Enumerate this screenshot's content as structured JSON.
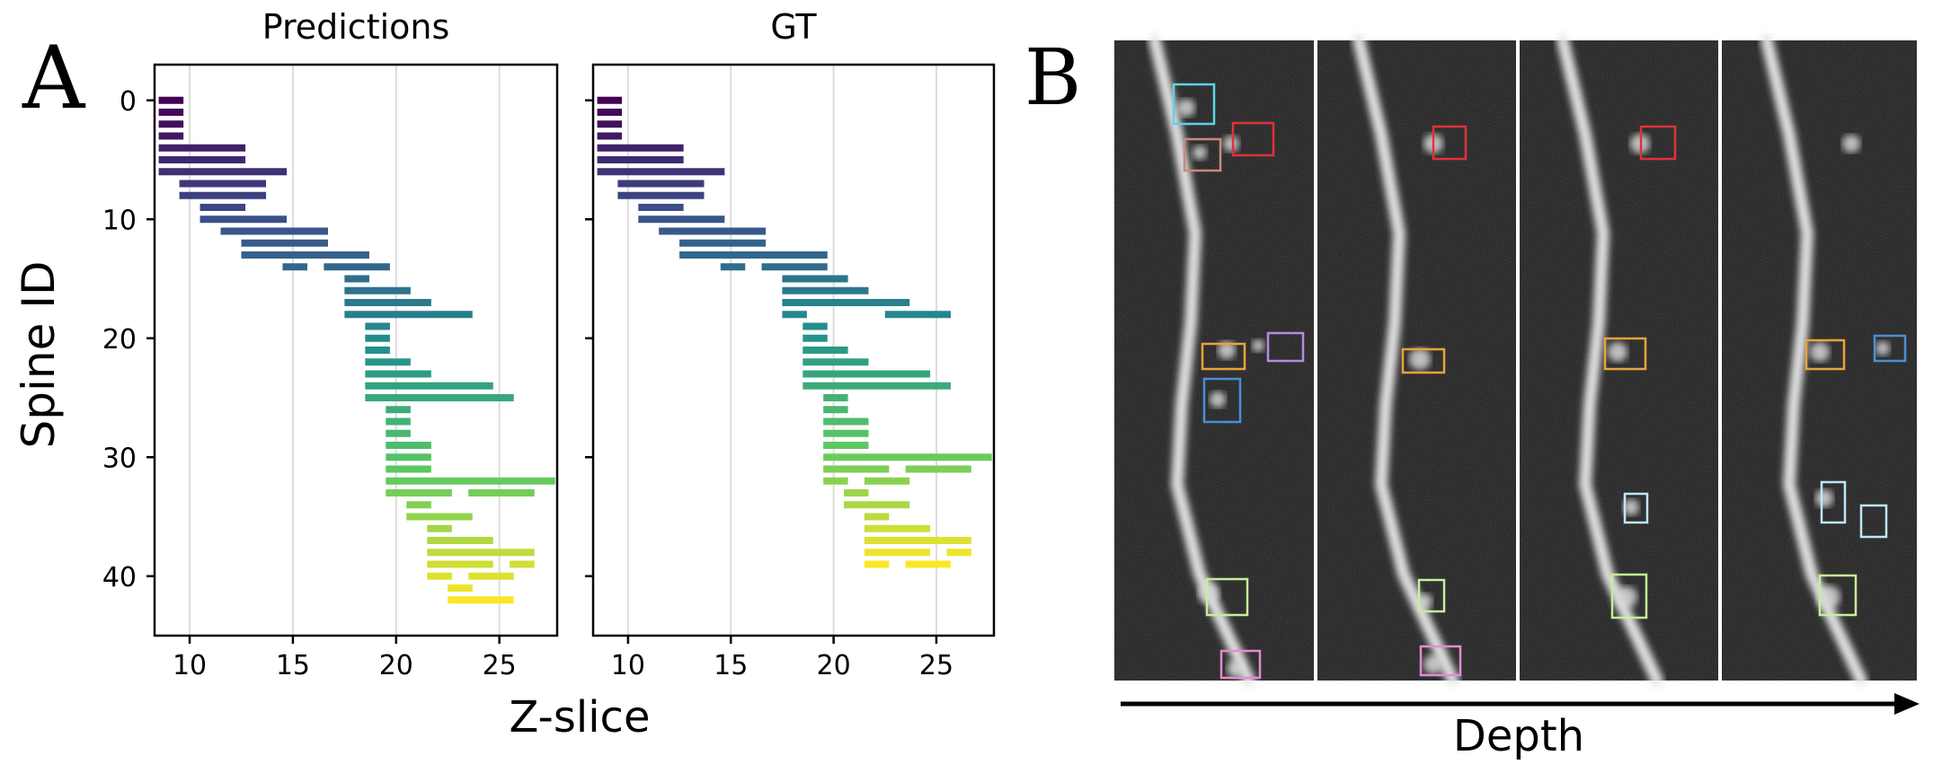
{
  "panel_a_label": "A",
  "panel_b_label": "B",
  "panel_b_axis_label": "Depth",
  "colormap": [
    "#440154",
    "#3b528b",
    "#21918c",
    "#5ec962",
    "#fde725"
  ],
  "box_colors": {
    "cyan": "#5fd3e6",
    "red": "#e0313a",
    "brown": "#c98a7c",
    "orange": "#e8a33a",
    "purple": "#b48be6",
    "blue": "#4a8fd6",
    "lightblue": "#bfe6ff",
    "green": "#c7ee9a",
    "pink": "#e58ad6"
  },
  "chart_data": [
    {
      "type": "bar",
      "orientation": "horizontal-range",
      "title": "Predictions",
      "xlabel": "Z-slice",
      "ylabel": "Spine ID",
      "xlim": [
        8.3,
        27.8
      ],
      "ylim": [
        45,
        -3
      ],
      "xticks": [
        10,
        15,
        20,
        25
      ],
      "yticks": [
        0,
        10,
        20,
        30,
        40
      ],
      "grid": "x",
      "segments": [
        {
          "id": 0,
          "start": 8.5,
          "end": 9.7
        },
        {
          "id": 1,
          "start": 8.5,
          "end": 9.7
        },
        {
          "id": 2,
          "start": 8.5,
          "end": 9.7
        },
        {
          "id": 3,
          "start": 8.5,
          "end": 9.7
        },
        {
          "id": 4,
          "start": 8.5,
          "end": 12.7
        },
        {
          "id": 5,
          "start": 8.5,
          "end": 12.7
        },
        {
          "id": 6,
          "start": 8.5,
          "end": 14.7
        },
        {
          "id": 7,
          "start": 9.5,
          "end": 13.7
        },
        {
          "id": 8,
          "start": 9.5,
          "end": 13.7
        },
        {
          "id": 9,
          "start": 10.5,
          "end": 12.7
        },
        {
          "id": 10,
          "start": 10.5,
          "end": 14.7
        },
        {
          "id": 11,
          "start": 11.5,
          "end": 16.7
        },
        {
          "id": 12,
          "start": 12.5,
          "end": 16.7
        },
        {
          "id": 13,
          "start": 12.5,
          "end": 18.7
        },
        {
          "id": 14,
          "start": 14.5,
          "end": 15.7
        },
        {
          "id": 14,
          "start": 16.5,
          "end": 19.7
        },
        {
          "id": 15,
          "start": 17.5,
          "end": 18.7
        },
        {
          "id": 16,
          "start": 17.5,
          "end": 20.7
        },
        {
          "id": 17,
          "start": 17.5,
          "end": 21.7
        },
        {
          "id": 18,
          "start": 17.5,
          "end": 23.7
        },
        {
          "id": 19,
          "start": 18.5,
          "end": 19.7
        },
        {
          "id": 20,
          "start": 18.5,
          "end": 19.7
        },
        {
          "id": 21,
          "start": 18.5,
          "end": 19.7
        },
        {
          "id": 22,
          "start": 18.5,
          "end": 20.7
        },
        {
          "id": 23,
          "start": 18.5,
          "end": 21.7
        },
        {
          "id": 24,
          "start": 18.5,
          "end": 24.7
        },
        {
          "id": 25,
          "start": 18.5,
          "end": 25.7
        },
        {
          "id": 26,
          "start": 19.5,
          "end": 20.7
        },
        {
          "id": 27,
          "start": 19.5,
          "end": 20.7
        },
        {
          "id": 28,
          "start": 19.5,
          "end": 20.7
        },
        {
          "id": 29,
          "start": 19.5,
          "end": 21.7
        },
        {
          "id": 30,
          "start": 19.5,
          "end": 21.7
        },
        {
          "id": 31,
          "start": 19.5,
          "end": 21.7
        },
        {
          "id": 32,
          "start": 19.5,
          "end": 27.7
        },
        {
          "id": 33,
          "start": 19.5,
          "end": 22.7
        },
        {
          "id": 33,
          "start": 23.5,
          "end": 26.7
        },
        {
          "id": 34,
          "start": 20.5,
          "end": 21.7
        },
        {
          "id": 35,
          "start": 20.5,
          "end": 23.7
        },
        {
          "id": 36,
          "start": 21.5,
          "end": 22.7
        },
        {
          "id": 37,
          "start": 21.5,
          "end": 24.7
        },
        {
          "id": 38,
          "start": 21.5,
          "end": 26.7
        },
        {
          "id": 39,
          "start": 21.5,
          "end": 24.7
        },
        {
          "id": 39,
          "start": 25.5,
          "end": 26.7
        },
        {
          "id": 40,
          "start": 21.5,
          "end": 22.7
        },
        {
          "id": 40,
          "start": 23.5,
          "end": 25.7
        },
        {
          "id": 41,
          "start": 22.5,
          "end": 23.7
        },
        {
          "id": 42,
          "start": 22.5,
          "end": 25.7
        }
      ]
    },
    {
      "type": "bar",
      "orientation": "horizontal-range",
      "title": "GT",
      "xlabel": "Z-slice",
      "ylabel": "",
      "xlim": [
        8.3,
        27.8
      ],
      "ylim": [
        45,
        -3
      ],
      "xticks": [
        10,
        15,
        20,
        25
      ],
      "yticks": [
        0,
        10,
        20,
        30,
        40
      ],
      "grid": "x",
      "segments": [
        {
          "id": 0,
          "start": 8.5,
          "end": 9.7
        },
        {
          "id": 1,
          "start": 8.5,
          "end": 9.7
        },
        {
          "id": 2,
          "start": 8.5,
          "end": 9.7
        },
        {
          "id": 3,
          "start": 8.5,
          "end": 9.7
        },
        {
          "id": 4,
          "start": 8.5,
          "end": 12.7
        },
        {
          "id": 5,
          "start": 8.5,
          "end": 12.7
        },
        {
          "id": 6,
          "start": 8.5,
          "end": 14.7
        },
        {
          "id": 7,
          "start": 9.5,
          "end": 13.7
        },
        {
          "id": 8,
          "start": 9.5,
          "end": 13.7
        },
        {
          "id": 9,
          "start": 10.5,
          "end": 12.7
        },
        {
          "id": 10,
          "start": 10.5,
          "end": 14.7
        },
        {
          "id": 11,
          "start": 11.5,
          "end": 16.7
        },
        {
          "id": 12,
          "start": 12.5,
          "end": 16.7
        },
        {
          "id": 13,
          "start": 12.5,
          "end": 19.7
        },
        {
          "id": 14,
          "start": 14.5,
          "end": 15.7
        },
        {
          "id": 14,
          "start": 16.5,
          "end": 19.7
        },
        {
          "id": 15,
          "start": 17.5,
          "end": 20.7
        },
        {
          "id": 16,
          "start": 17.5,
          "end": 21.7
        },
        {
          "id": 17,
          "start": 17.5,
          "end": 23.7
        },
        {
          "id": 18,
          "start": 17.5,
          "end": 18.7
        },
        {
          "id": 18,
          "start": 22.5,
          "end": 25.7
        },
        {
          "id": 19,
          "start": 18.5,
          "end": 19.7
        },
        {
          "id": 20,
          "start": 18.5,
          "end": 19.7
        },
        {
          "id": 21,
          "start": 18.5,
          "end": 20.7
        },
        {
          "id": 22,
          "start": 18.5,
          "end": 21.7
        },
        {
          "id": 23,
          "start": 18.5,
          "end": 24.7
        },
        {
          "id": 24,
          "start": 18.5,
          "end": 25.7
        },
        {
          "id": 25,
          "start": 19.5,
          "end": 20.7
        },
        {
          "id": 26,
          "start": 19.5,
          "end": 20.7
        },
        {
          "id": 27,
          "start": 19.5,
          "end": 21.7
        },
        {
          "id": 28,
          "start": 19.5,
          "end": 21.7
        },
        {
          "id": 29,
          "start": 19.5,
          "end": 21.7
        },
        {
          "id": 30,
          "start": 19.5,
          "end": 27.7
        },
        {
          "id": 31,
          "start": 19.5,
          "end": 22.7
        },
        {
          "id": 31,
          "start": 23.5,
          "end": 26.7
        },
        {
          "id": 32,
          "start": 19.5,
          "end": 20.7
        },
        {
          "id": 32,
          "start": 21.5,
          "end": 23.7
        },
        {
          "id": 33,
          "start": 20.5,
          "end": 21.7
        },
        {
          "id": 34,
          "start": 20.5,
          "end": 23.7
        },
        {
          "id": 35,
          "start": 21.5,
          "end": 22.7
        },
        {
          "id": 36,
          "start": 21.5,
          "end": 24.7
        },
        {
          "id": 37,
          "start": 21.5,
          "end": 26.7
        },
        {
          "id": 38,
          "start": 21.5,
          "end": 24.7
        },
        {
          "id": 38,
          "start": 25.5,
          "end": 26.7
        },
        {
          "id": 39,
          "start": 21.5,
          "end": 22.7
        },
        {
          "id": 39,
          "start": 23.5,
          "end": 25.7
        }
      ]
    }
  ]
}
